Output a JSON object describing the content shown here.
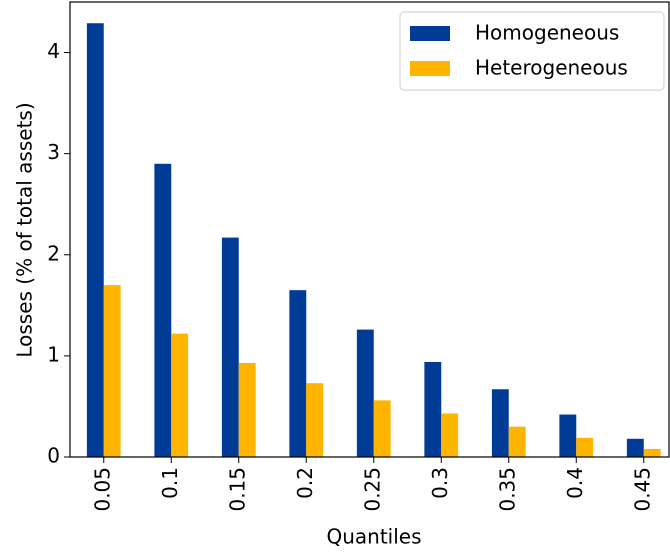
{
  "chart_data": {
    "type": "bar",
    "xlabel": "Quantiles",
    "ylabel": "Losses (% of total assets)",
    "categories": [
      "0.05",
      "0.1",
      "0.15",
      "0.2",
      "0.25",
      "0.3",
      "0.35",
      "0.4",
      "0.45"
    ],
    "series": [
      {
        "name": "Homogeneous",
        "color": "#003b96",
        "values": [
          4.29,
          2.9,
          2.17,
          1.65,
          1.26,
          0.94,
          0.67,
          0.42,
          0.18
        ]
      },
      {
        "name": "Heterogeneous",
        "color": "#ffb400",
        "values": [
          1.7,
          1.22,
          0.93,
          0.73,
          0.56,
          0.43,
          0.3,
          0.19,
          0.08
        ]
      }
    ],
    "ylim": [
      0,
      4.5
    ],
    "yticks": [
      0,
      1,
      2,
      3,
      4
    ],
    "legend": "upper right"
  }
}
